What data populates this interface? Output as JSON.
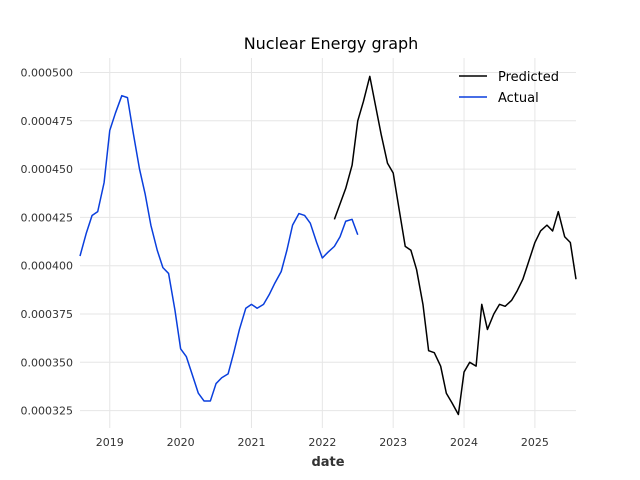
{
  "chart_data": {
    "type": "line",
    "title": "Nuclear Energy graph",
    "xlabel": "date",
    "ylabel": "",
    "xlim": [
      2018.58,
      2025.58
    ],
    "ylim": [
      0.000316,
      0.0005075
    ],
    "x_ticks": [
      2019,
      2020,
      2021,
      2022,
      2023,
      2024,
      2025
    ],
    "x_tick_labels": [
      "2019",
      "2020",
      "2021",
      "2022",
      "2023",
      "2024",
      "2025"
    ],
    "y_ticks": [
      0.000325,
      0.00035,
      0.000375,
      0.0004,
      0.000425,
      0.00045,
      0.000475,
      0.0005
    ],
    "y_tick_labels": [
      "0.000325",
      "0.000350",
      "0.000375",
      "0.000400",
      "0.000425",
      "0.000450",
      "0.000475",
      "0.000500"
    ],
    "grid": true,
    "legend_position": "top-right",
    "series": [
      {
        "name": "Predicted",
        "color": "#000000",
        "x": [
          2022.17,
          2022.25,
          2022.33,
          2022.42,
          2022.5,
          2022.58,
          2022.67,
          2022.75,
          2022.83,
          2022.92,
          2023.0,
          2023.08,
          2023.17,
          2023.25,
          2023.33,
          2023.42,
          2023.5,
          2023.58,
          2023.67,
          2023.75,
          2023.83,
          2023.92,
          2024.0,
          2024.08,
          2024.17,
          2024.25,
          2024.33,
          2024.42,
          2024.5,
          2024.58,
          2024.67,
          2024.75,
          2024.83,
          2024.92,
          2025.0,
          2025.08,
          2025.17,
          2025.25,
          2025.33,
          2025.42,
          2025.5,
          2025.58
        ],
        "values": [
          0.000424,
          0.000432,
          0.00044,
          0.000452,
          0.000475,
          0.000485,
          0.000498,
          0.000483,
          0.000468,
          0.000453,
          0.000448,
          0.00043,
          0.00041,
          0.000408,
          0.000398,
          0.00038,
          0.000356,
          0.000355,
          0.000348,
          0.000334,
          0.000329,
          0.000323,
          0.000345,
          0.00035,
          0.000348,
          0.00038,
          0.000367,
          0.000375,
          0.00038,
          0.000379,
          0.000382,
          0.000387,
          0.000393,
          0.000403,
          0.000412,
          0.000418,
          0.000421,
          0.000418,
          0.000428,
          0.000415,
          0.000412,
          0.000393
        ]
      },
      {
        "name": "Actual",
        "color": "#0a3fdd",
        "x": [
          2018.58,
          2018.67,
          2018.75,
          2018.83,
          2018.92,
          2019.0,
          2019.08,
          2019.17,
          2019.25,
          2019.33,
          2019.42,
          2019.5,
          2019.58,
          2019.67,
          2019.75,
          2019.83,
          2019.92,
          2020.0,
          2020.08,
          2020.17,
          2020.25,
          2020.33,
          2020.42,
          2020.5,
          2020.58,
          2020.67,
          2020.75,
          2020.83,
          2020.92,
          2021.0,
          2021.08,
          2021.17,
          2021.25,
          2021.33,
          2021.42,
          2021.5,
          2021.58,
          2021.67,
          2021.75,
          2021.83,
          2021.92,
          2022.0,
          2022.08,
          2022.17,
          2022.25,
          2022.33,
          2022.42,
          2022.5
        ],
        "values": [
          0.000405,
          0.000417,
          0.000426,
          0.000428,
          0.000443,
          0.00047,
          0.000479,
          0.000488,
          0.000487,
          0.000469,
          0.00045,
          0.000437,
          0.000421,
          0.000408,
          0.000399,
          0.000396,
          0.000377,
          0.000357,
          0.000353,
          0.000343,
          0.000334,
          0.00033,
          0.00033,
          0.000339,
          0.000342,
          0.000344,
          0.000355,
          0.000367,
          0.000378,
          0.00038,
          0.000378,
          0.00038,
          0.000385,
          0.000391,
          0.000397,
          0.000408,
          0.000421,
          0.000427,
          0.000426,
          0.000422,
          0.000412,
          0.000404,
          0.000407,
          0.00041,
          0.000415,
          0.000423,
          0.000424,
          0.000416
        ]
      }
    ]
  }
}
